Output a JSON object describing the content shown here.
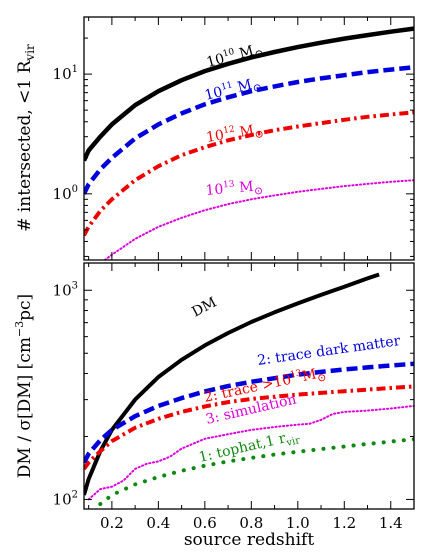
{
  "chart_data": [
    {
      "type": "line",
      "panel": "top",
      "ylabel": "# intersected, <1 R",
      "ylabel_sub": "vir",
      "yscale": "log",
      "xlim": [
        0.08,
        1.5
      ],
      "ylim": [
        0.28,
        30
      ],
      "yticks": [
        {
          "value": 1,
          "label": "10",
          "exp": "0"
        },
        {
          "value": 10,
          "label": "10",
          "exp": "1"
        }
      ],
      "series": [
        {
          "name": "10",
          "name_exp": "10",
          "name_suffix": " M",
          "name_sym": "⊙",
          "color": "#000000",
          "style": "solid",
          "width": 4.5,
          "x": [
            0.08,
            0.1,
            0.15,
            0.2,
            0.3,
            0.4,
            0.5,
            0.6,
            0.7,
            0.8,
            0.9,
            1.0,
            1.1,
            1.2,
            1.3,
            1.4,
            1.5
          ],
          "y": [
            1.9,
            2.3,
            3.0,
            3.8,
            5.5,
            7.2,
            8.9,
            10.6,
            12.2,
            13.8,
            15.3,
            16.8,
            18.3,
            19.8,
            21.2,
            22.6,
            24.0
          ]
        },
        {
          "name": "10",
          "name_exp": "11",
          "name_suffix": " M",
          "name_sym": "⊙",
          "color": "#0000dd",
          "style": "dashed",
          "width": 4.5,
          "x": [
            0.08,
            0.1,
            0.15,
            0.2,
            0.3,
            0.4,
            0.5,
            0.6,
            0.7,
            0.8,
            0.9,
            1.0,
            1.1,
            1.2,
            1.3,
            1.4,
            1.5
          ],
          "y": [
            1.0,
            1.2,
            1.6,
            2.0,
            2.9,
            3.8,
            4.7,
            5.6,
            6.4,
            7.2,
            7.9,
            8.6,
            9.2,
            9.8,
            10.4,
            10.9,
            11.4
          ]
        },
        {
          "name": "10",
          "name_exp": "12",
          "name_suffix": " M",
          "name_sym": "⊙",
          "color": "#ee0000",
          "style": "dashdot",
          "width": 4,
          "x": [
            0.08,
            0.1,
            0.15,
            0.2,
            0.3,
            0.4,
            0.5,
            0.6,
            0.7,
            0.8,
            0.9,
            1.0,
            1.1,
            1.2,
            1.3,
            1.4,
            1.5
          ],
          "y": [
            0.45,
            0.53,
            0.72,
            0.9,
            1.3,
            1.7,
            2.1,
            2.45,
            2.8,
            3.1,
            3.4,
            3.65,
            3.9,
            4.15,
            4.4,
            4.6,
            4.8
          ]
        },
        {
          "name": "10",
          "name_exp": "13",
          "name_suffix": " M",
          "name_sym": "⊙",
          "color": "#dd00dd",
          "style": "dotted",
          "width": 2,
          "x": [
            0.17,
            0.2,
            0.3,
            0.4,
            0.5,
            0.6,
            0.7,
            0.8,
            0.9,
            1.0,
            1.1,
            1.2,
            1.3,
            1.4,
            1.5
          ],
          "y": [
            0.28,
            0.31,
            0.42,
            0.53,
            0.63,
            0.73,
            0.82,
            0.9,
            0.97,
            1.04,
            1.1,
            1.16,
            1.21,
            1.26,
            1.3
          ]
        }
      ]
    },
    {
      "type": "line",
      "panel": "bottom",
      "xlabel": "source redshift",
      "ylabel": "DM / σ[DM]  [cm",
      "ylabel_exp": "−3",
      "ylabel_end": "pc]",
      "yscale": "log",
      "xlim": [
        0.08,
        1.5
      ],
      "ylim": [
        90,
        1350
      ],
      "xticks": [
        0.2,
        0.4,
        0.6,
        0.8,
        1.0,
        1.2,
        1.4
      ],
      "xtick_labels": [
        "0.2",
        "0.4",
        "0.6",
        "0.8",
        "1.0",
        "1.2",
        "1.4"
      ],
      "yticks": [
        {
          "value": 100,
          "label": "10",
          "exp": "2"
        },
        {
          "value": 1000,
          "label": "10",
          "exp": "3"
        }
      ],
      "series": [
        {
          "name": "DM",
          "color": "#000000",
          "style": "solid",
          "width": 4,
          "x": [
            0.08,
            0.1,
            0.15,
            0.2,
            0.3,
            0.4,
            0.5,
            0.6,
            0.7,
            0.8,
            0.9,
            1.0,
            1.1,
            1.2,
            1.3,
            1.35
          ],
          "y": [
            105,
            125,
            170,
            215,
            300,
            385,
            465,
            545,
            625,
            705,
            785,
            865,
            950,
            1040,
            1140,
            1190
          ]
        },
        {
          "name": "2: trace dark matter",
          "color": "#0000dd",
          "style": "dashed",
          "width": 4.5,
          "x": [
            0.08,
            0.1,
            0.15,
            0.2,
            0.3,
            0.4,
            0.5,
            0.6,
            0.7,
            0.8,
            0.9,
            1.0,
            1.1,
            1.2,
            1.3,
            1.4,
            1.5
          ],
          "y": [
            150,
            165,
            192,
            215,
            250,
            280,
            305,
            328,
            348,
            365,
            380,
            395,
            407,
            418,
            428,
            437,
            445
          ]
        },
        {
          "name": "2: trace >10",
          "name_exp": "13",
          "name_suffix": "M",
          "name_sym": "⊙",
          "color": "#ee0000",
          "style": "dashdot",
          "width": 4,
          "x": [
            0.08,
            0.1,
            0.15,
            0.2,
            0.3,
            0.4,
            0.5,
            0.6,
            0.7,
            0.8,
            0.9,
            1.0,
            1.1,
            1.2,
            1.3,
            1.4,
            1.5
          ],
          "y": [
            140,
            150,
            170,
            190,
            220,
            243,
            262,
            278,
            292,
            302,
            310,
            317,
            323,
            329,
            335,
            341,
            347
          ]
        },
        {
          "name": "3: simulation",
          "color": "#dd00dd",
          "style": "dotted",
          "width": 2,
          "x": [
            0.1,
            0.15,
            0.2,
            0.25,
            0.3,
            0.35,
            0.4,
            0.45,
            0.5,
            0.6,
            0.7,
            0.8,
            0.9,
            1.0,
            1.05,
            1.1,
            1.15,
            1.2,
            1.3,
            1.4,
            1.5
          ],
          "y": [
            100,
            112,
            115,
            123,
            140,
            148,
            152,
            160,
            175,
            195,
            205,
            215,
            222,
            228,
            230,
            240,
            256,
            262,
            266,
            272,
            280
          ]
        },
        {
          "name": "1: tophat,1 r",
          "name_sub": "vir",
          "color": "#118811",
          "style": "bigdots",
          "width": 4,
          "x": [
            0.15,
            0.2,
            0.3,
            0.4,
            0.5,
            0.6,
            0.7,
            0.8,
            0.9,
            1.0,
            1.1,
            1.2,
            1.3,
            1.4,
            1.5
          ],
          "y": [
            95,
            105,
            118,
            128,
            137,
            145,
            152,
            158,
            164,
            169,
            174,
            179,
            184,
            189,
            194
          ]
        }
      ]
    }
  ]
}
